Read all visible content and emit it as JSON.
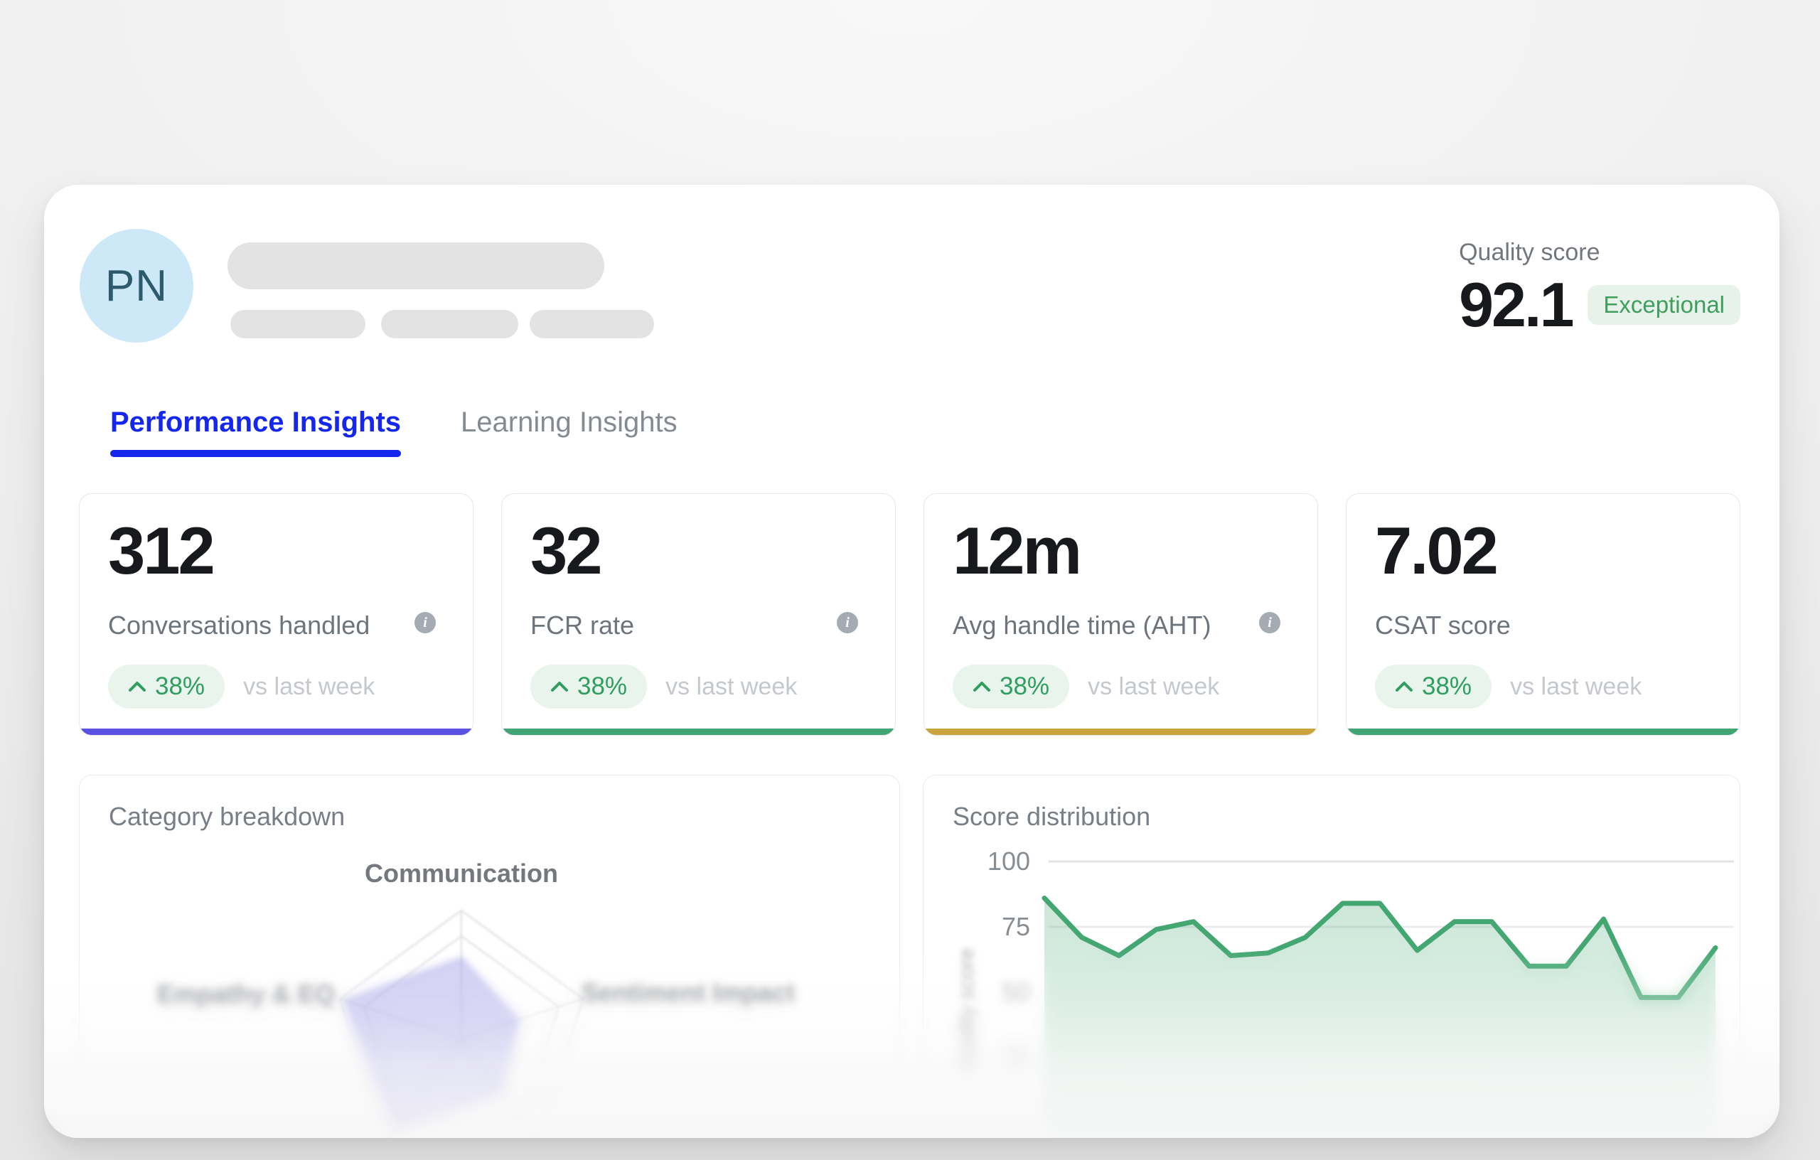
{
  "header": {
    "avatar_initials": "PN",
    "quality_score_label": "Quality score",
    "quality_score_value": "92.1",
    "quality_badge": "Exceptional"
  },
  "tabs": [
    {
      "label": "Performance Insights",
      "active": true
    },
    {
      "label": "Learning Insights",
      "active": false
    }
  ],
  "metric_cards": [
    {
      "value": "312",
      "label": "Conversations handled",
      "has_info": true,
      "delta": "38%",
      "delta_note": "vs last week",
      "accent": "#5a52e0"
    },
    {
      "value": "32",
      "label": "FCR rate",
      "has_info": true,
      "delta": "38%",
      "delta_note": "vs last week",
      "accent": "#3ea573"
    },
    {
      "value": "12m",
      "label": "Avg handle time (AHT)",
      "has_info": true,
      "delta": "38%",
      "delta_note": "vs last week",
      "accent": "#c9a43c"
    },
    {
      "value": "7.02",
      "label": "CSAT score",
      "has_info": false,
      "delta": "38%",
      "delta_note": "vs last week",
      "accent": "#3ea573"
    }
  ],
  "colors": {
    "tab_active": "#1527ee",
    "delta_green": "#2f9e5f",
    "line_green": "#44a772",
    "radar_purple": "#7872dc"
  },
  "chart_data": [
    {
      "type": "radar",
      "title": "Category breakdown",
      "axes": [
        "Communication",
        "Sentiment Impact",
        "",
        "",
        "Empathy & EQ"
      ],
      "values": [
        62,
        46,
        52,
        88,
        95
      ],
      "max": 100,
      "rings": [
        1.0,
        0.8
      ],
      "fill": "#8681e2",
      "fill_opacity": 0.34,
      "stroke": "#736dd9"
    },
    {
      "type": "area",
      "title": "Score distribution",
      "ylabel": "Quality score",
      "yticks": [
        100,
        75,
        50,
        25
      ],
      "ylim": [
        25,
        100
      ],
      "grid": [
        100,
        75
      ],
      "values": [
        86,
        71,
        64,
        74,
        77,
        64,
        65,
        71,
        84,
        84,
        66,
        77,
        77,
        60,
        60,
        78,
        48,
        48,
        67
      ],
      "line_color": "#44a772"
    }
  ]
}
